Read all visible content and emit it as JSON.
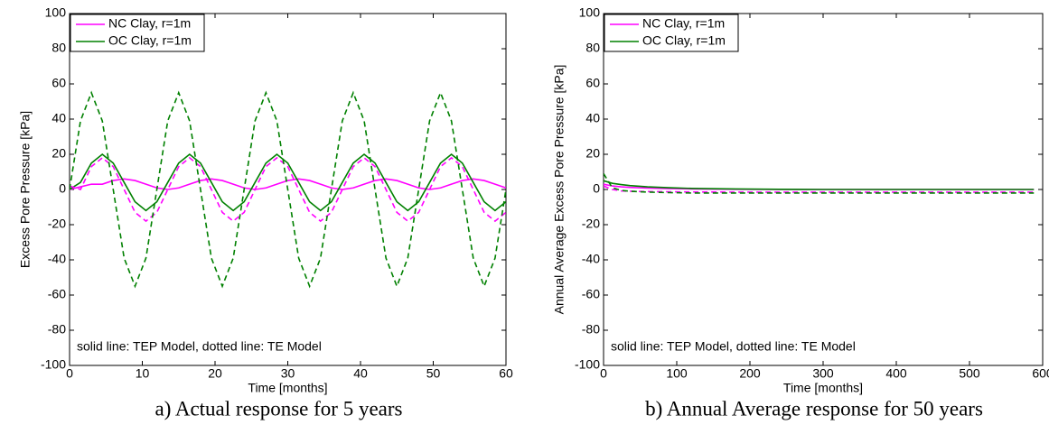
{
  "chart_data": [
    {
      "type": "line",
      "ylabel": "Excess Pore Pressure [kPa]",
      "xlabel": "Time [months]",
      "caption": "a) Actual response for 5 years",
      "annotation": "solid line: TEP Model, dotted line: TE Model",
      "legend": "upper left",
      "grid": false,
      "xlim": [
        0,
        60
      ],
      "xticks": [
        0,
        10,
        20,
        30,
        40,
        50,
        60
      ],
      "ylim": [
        -100,
        100
      ],
      "yticks": [
        -100,
        -80,
        -60,
        -40,
        -20,
        0,
        20,
        40,
        60,
        80,
        100
      ],
      "x": [
        0,
        1.5,
        3,
        4.5,
        6,
        7.5,
        9,
        10.5,
        12,
        13.5,
        15,
        16.5,
        18,
        19.5,
        21,
        22.5,
        24,
        25.5,
        27,
        28.5,
        30,
        31.5,
        33,
        34.5,
        36,
        37.5,
        39,
        40.5,
        42,
        43.5,
        45,
        46.5,
        48,
        49.5,
        51,
        52.5,
        54,
        55.5,
        57,
        58.5,
        60
      ],
      "series": [
        {
          "name": "NC Clay, r=1m",
          "color": "#ff00ff",
          "dash": false,
          "values": [
            0,
            1.5,
            3,
            3,
            5.1,
            6,
            5.1,
            3,
            0.9,
            0,
            0.9,
            3,
            5.1,
            6,
            5.1,
            3,
            0.9,
            0,
            0.9,
            3,
            5.1,
            6,
            5.1,
            3,
            0.9,
            0,
            0.9,
            3,
            5.1,
            6,
            5.1,
            3,
            0.9,
            0,
            0.9,
            3,
            5.1,
            6,
            5.1,
            3,
            0.9
          ]
        },
        {
          "name": "OC Clay, r=1m",
          "color": "#008000",
          "dash": false,
          "values": [
            0,
            4,
            15,
            20,
            15,
            4,
            -7,
            -12,
            -7,
            4,
            15,
            20,
            15,
            4,
            -7,
            -12,
            -7,
            4,
            15,
            20,
            15,
            4,
            -7,
            -12,
            -7,
            4,
            15,
            20,
            15,
            4,
            -7,
            -12,
            -7,
            4,
            15,
            20,
            15,
            4,
            -7,
            -12,
            -7
          ]
        },
        {
          "color": "#ff00ff",
          "dash": true,
          "values": [
            2,
            0,
            13,
            18,
            13,
            0,
            -13,
            -18,
            -13,
            0,
            13,
            18,
            13,
            0,
            -13,
            -18,
            -13,
            0,
            13,
            18,
            13,
            0,
            -13,
            -18,
            -13,
            0,
            13,
            18,
            13,
            0,
            -13,
            -18,
            -13,
            0,
            13,
            18,
            13,
            0,
            -13,
            -18,
            -13
          ]
        },
        {
          "color": "#008000",
          "dash": true,
          "values": [
            0,
            39,
            55,
            39,
            0,
            -39,
            -55,
            -39,
            0,
            39,
            55,
            39,
            0,
            -39,
            -55,
            -39,
            0,
            39,
            55,
            39,
            0,
            -39,
            -55,
            -39,
            0,
            39,
            55,
            39,
            0,
            -39,
            -55,
            -39,
            0,
            39,
            55,
            39,
            0,
            -39,
            -55,
            -39,
            0
          ]
        }
      ]
    },
    {
      "type": "line",
      "ylabel": "Annual Average Excess Pore Pressure [kPa]",
      "xlabel": "Time [months]",
      "caption": "b) Annual Average response for 50 years",
      "annotation": "solid line: TEP Model, dotted line: TE Model",
      "legend": "upper left",
      "grid": false,
      "xlim": [
        0,
        600
      ],
      "xticks": [
        0,
        100,
        200,
        300,
        400,
        500,
        600
      ],
      "ylim": [
        -100,
        100
      ],
      "yticks": [
        -100,
        -80,
        -60,
        -40,
        -20,
        0,
        20,
        40,
        60,
        80,
        100
      ],
      "x": [
        0,
        12,
        24,
        36,
        60,
        90,
        120,
        180,
        240,
        300,
        360,
        420,
        480,
        540,
        588
      ],
      "series": [
        {
          "name": "NC Clay, r=1m",
          "color": "#ff00ff",
          "dash": false,
          "values": [
            3,
            2,
            1.5,
            1.2,
            0.8,
            0.5,
            0.3,
            0.1,
            0,
            0,
            0,
            0,
            0,
            0,
            0
          ]
        },
        {
          "name": "OC Clay, r=1m",
          "color": "#008000",
          "dash": false,
          "values": [
            5,
            3.5,
            2.8,
            2.2,
            1.5,
            1,
            0.6,
            0.3,
            0.1,
            0,
            0,
            0,
            0,
            0,
            0
          ]
        },
        {
          "color": "#ff00ff",
          "dash": true,
          "values": [
            2,
            0,
            -0.8,
            -1,
            -1.2,
            -1.3,
            -1.4,
            -1.5,
            -1.5,
            -1.5,
            -1.5,
            -1.5,
            -1.5,
            -1.5,
            -1.5
          ]
        },
        {
          "color": "#008000",
          "dash": true,
          "values": [
            9,
            1,
            -0.5,
            -1,
            -1.5,
            -1.8,
            -2,
            -2,
            -2,
            -2,
            -2,
            -2,
            -2,
            -2,
            -2
          ]
        }
      ]
    }
  ]
}
